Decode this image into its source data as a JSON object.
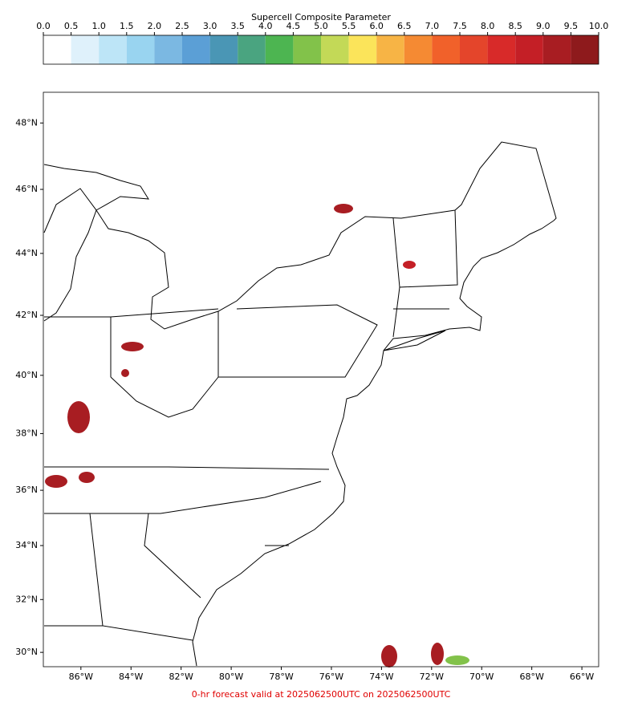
{
  "colorbar": {
    "title": "Supercell Composite Parameter",
    "ticks": [
      {
        "value": 0,
        "label": "0.0"
      },
      {
        "value": 0.5,
        "label": "0.5"
      },
      {
        "value": 1,
        "label": "1.0"
      },
      {
        "value": 1.5,
        "label": "1.5"
      },
      {
        "value": 2,
        "label": "2.0"
      },
      {
        "value": 2.5,
        "label": "2.5"
      },
      {
        "value": 3,
        "label": "3.0"
      },
      {
        "value": 3.5,
        "label": "3.5"
      },
      {
        "value": 4,
        "label": "4.0"
      },
      {
        "value": 4.5,
        "label": "4.5"
      },
      {
        "value": 5,
        "label": "5.0"
      },
      {
        "value": 5.5,
        "label": "5.5"
      },
      {
        "value": 6,
        "label": "6.0"
      },
      {
        "value": 6.5,
        "label": "6.5"
      },
      {
        "value": 7,
        "label": "7.0"
      },
      {
        "value": 7.5,
        "label": "7.5"
      },
      {
        "value": 8,
        "label": "8.0"
      },
      {
        "value": 8.5,
        "label": "8.5"
      },
      {
        "value": 9,
        "label": "9.0"
      },
      {
        "value": 9.5,
        "label": "9.5"
      },
      {
        "value": 10,
        "label": "10.0"
      }
    ],
    "colors": [
      "#ffffff",
      "#dff1fb",
      "#bde5f7",
      "#99d4f0",
      "#7bb8e2",
      "#5b9fd6",
      "#4a96b5",
      "#4aa480",
      "#4db551",
      "#82c24a",
      "#c3d957",
      "#fbe45a",
      "#f7b445",
      "#f58a33",
      "#f1612a",
      "#e4452b",
      "#d82a29",
      "#c41f26",
      "#a81d22",
      "#8e1a1c"
    ]
  },
  "map": {
    "lon_range": [
      -87.5,
      -65.33
    ],
    "lat_range": [
      29.45,
      48.9
    ],
    "lat_ticks": [
      {
        "value": 30,
        "label": "30°N"
      },
      {
        "value": 32,
        "label": "32°N"
      },
      {
        "value": 34,
        "label": "34°N"
      },
      {
        "value": 36,
        "label": "36°N"
      },
      {
        "value": 38,
        "label": "38°N"
      },
      {
        "value": 40,
        "label": "40°N"
      },
      {
        "value": 42,
        "label": "42°N"
      },
      {
        "value": 44,
        "label": "44°N"
      },
      {
        "value": 46,
        "label": "46°N"
      },
      {
        "value": 48,
        "label": "48°N"
      }
    ],
    "lon_ticks": [
      {
        "value": -86,
        "label": "86°W"
      },
      {
        "value": -84,
        "label": "84°W"
      },
      {
        "value": -82,
        "label": "82°W"
      },
      {
        "value": -80,
        "label": "80°W"
      },
      {
        "value": -78,
        "label": "78°W"
      },
      {
        "value": -76,
        "label": "76°W"
      },
      {
        "value": -74,
        "label": "74°W"
      },
      {
        "value": -72,
        "label": "72°W"
      },
      {
        "value": -70,
        "label": "70°W"
      },
      {
        "value": -68,
        "label": "68°W"
      },
      {
        "value": -66,
        "label": "66°W"
      }
    ]
  },
  "footer": "0-hr forecast valid at 2025062500UTC on 2025062500UTC"
}
